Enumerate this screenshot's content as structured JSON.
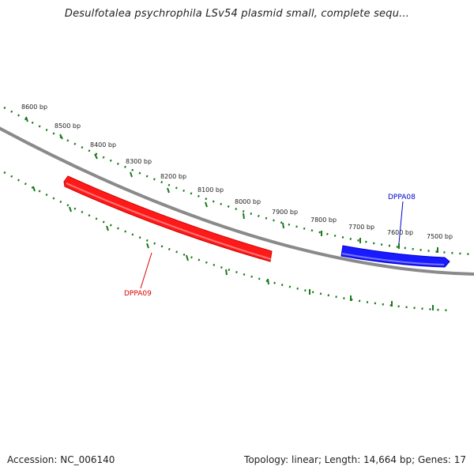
{
  "header": {
    "title": "Desulfotalea psychrophila LSv54 plasmid small, complete sequ..."
  },
  "footer": {
    "accession": "Accession: NC_006140",
    "summary": "Topology: linear; Length: 14,664 bp; Genes: 17"
  },
  "ruler": {
    "labels": [
      "8600 bp",
      "8500 bp",
      "8400 bp",
      "8300 bp",
      "8200 bp",
      "8100 bp",
      "8000 bp",
      "7900 bp",
      "7800 bp",
      "7700 bp",
      "7600 bp",
      "7500 bp"
    ]
  },
  "genes": [
    {
      "name": "DPPA09",
      "color": "#dd0000",
      "strand": "minus"
    },
    {
      "name": "DPPA08",
      "color": "#0000cc",
      "strand": "plus"
    }
  ],
  "colors": {
    "backbone": "#8a8a8a",
    "ticks": "#1a7a1a",
    "labels": "#222222"
  }
}
